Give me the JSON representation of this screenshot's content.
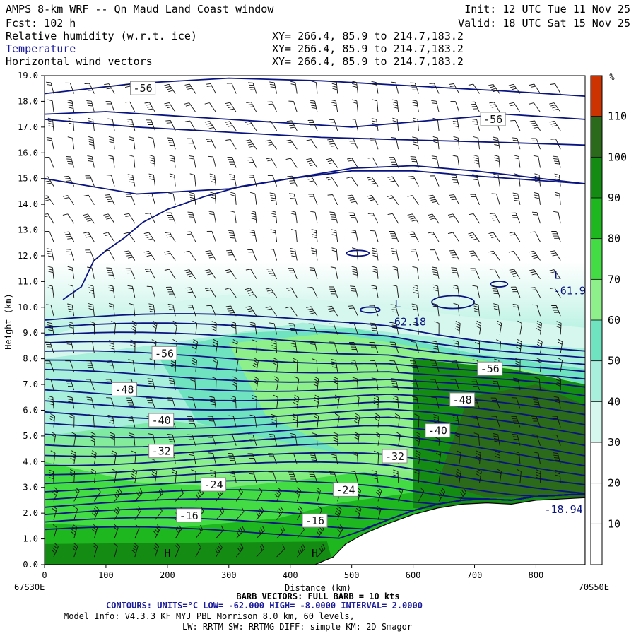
{
  "header": {
    "title": "AMPS 8-km WRF -- Qn Maud Land Coast window",
    "forecast": "Fcst:  102 h",
    "init": "Init: 12 UTC Tue 11 Nov 25",
    "valid": "Valid: 18 UTC Sat 15 Nov 25",
    "fields": [
      {
        "name": "Relative humidity (w.r.t. ice)",
        "xy": "XY= 266.4, 85.9 to 214.7,183.2"
      },
      {
        "name": "Temperature",
        "xy": "XY= 266.4, 85.9 to 214.7,183.2"
      },
      {
        "name": "Horizontal wind vectors",
        "xy": "XY= 266.4, 85.9 to 214.7,183.2"
      }
    ]
  },
  "chart_data": {
    "type": "heatmap",
    "xlabel": "Distance (km)",
    "ylabel": "Height (km)",
    "xlim": [
      0,
      880
    ],
    "ylim": [
      0,
      19
    ],
    "x_ticks": [
      0,
      100,
      200,
      300,
      400,
      500,
      600,
      700,
      800
    ],
    "y_ticks": [
      "0.0",
      "1.0",
      "2.0",
      "3.0",
      "4.0",
      "5.0",
      "6.0",
      "7.0",
      "8.0",
      "9.0",
      "10.0",
      "11.0",
      "12.0",
      "13.0",
      "14.0",
      "15.0",
      "16.0",
      "17.0",
      "18.0",
      "19.0"
    ],
    "x_start_label": "67S30E",
    "x_end_label": "70S50E",
    "colorbar": {
      "unit": "%",
      "tick_labels": [
        "10",
        "20",
        "30",
        "40",
        "50",
        "60",
        "70",
        "80",
        "90",
        "100",
        "110"
      ],
      "bins": [
        {
          "from": 0,
          "to": 30,
          "color": "#ffffff"
        },
        {
          "from": 30,
          "to": 40,
          "color": "#d6f7ee"
        },
        {
          "from": 40,
          "to": 50,
          "color": "#a8f0dc"
        },
        {
          "from": 50,
          "to": 60,
          "color": "#6fe3bf"
        },
        {
          "from": 60,
          "to": 70,
          "color": "#8ef08a"
        },
        {
          "from": 70,
          "to": 80,
          "color": "#44dc44"
        },
        {
          "from": 80,
          "to": 90,
          "color": "#1fb71f"
        },
        {
          "from": 90,
          "to": 100,
          "color": "#148c14"
        },
        {
          "from": 100,
          "to": 110,
          "color": "#2a6a1a"
        },
        {
          "from": 110,
          "to": 120,
          "color": "#cc3300"
        }
      ]
    },
    "terrain": [
      [
        0,
        0
      ],
      [
        440,
        0
      ],
      [
        470,
        0.3
      ],
      [
        490,
        0.8
      ],
      [
        520,
        1.2
      ],
      [
        560,
        1.6
      ],
      [
        600,
        1.95
      ],
      [
        640,
        2.2
      ],
      [
        680,
        2.35
      ],
      [
        720,
        2.4
      ],
      [
        760,
        2.35
      ],
      [
        800,
        2.5
      ],
      [
        880,
        2.6
      ]
    ],
    "temperature_contours": {
      "units": "°C",
      "labels": [
        {
          "text": "-56",
          "x": 160,
          "y": 18.5
        },
        {
          "text": "-56",
          "x": 730,
          "y": 17.3
        },
        {
          "text": "-56",
          "x": 195,
          "y": 8.2
        },
        {
          "text": "-56",
          "x": 725,
          "y": 7.6
        },
        {
          "text": "-48",
          "x": 130,
          "y": 6.8
        },
        {
          "text": "-48",
          "x": 680,
          "y": 6.4
        },
        {
          "text": "-40",
          "x": 190,
          "y": 5.6
        },
        {
          "text": "-40",
          "x": 640,
          "y": 5.2
        },
        {
          "text": "-32",
          "x": 190,
          "y": 4.4
        },
        {
          "text": "-32",
          "x": 570,
          "y": 4.2
        },
        {
          "text": "-24",
          "x": 275,
          "y": 3.1
        },
        {
          "text": "-24",
          "x": 490,
          "y": 2.9
        },
        {
          "text": "-16",
          "x": 235,
          "y": 1.9
        },
        {
          "text": "-16",
          "x": 440,
          "y": 1.7
        }
      ],
      "annotations": [
        {
          "text": "L",
          "x": 575,
          "y": 10.0
        },
        {
          "text": "-62.18",
          "x": 590,
          "y": 9.3
        },
        {
          "text": "L",
          "x": 835,
          "y": 11.1
        },
        {
          "text": "-61.9",
          "x": 855,
          "y": 10.5
        },
        {
          "text": "H",
          "x": 200,
          "y": 0.3
        },
        {
          "text": "H",
          "x": 440,
          "y": 0.3
        },
        {
          "text": "-18.94",
          "x": 845,
          "y": 2.0
        }
      ]
    }
  },
  "footer": {
    "barb_vectors": "BARB VECTORS:  FULL BARB = 10 kts",
    "contours": "CONTOURS:  UNITS=°C  LOW= -62.000      HIGH= -8.0000       INTERVAL=   2.0000",
    "model_info": "Model Info: V4.3.3   KF      MYJ PBL  Morrison          8.0 km,  60 levels,",
    "physics": "LW: RRTM SW: RRTMG   DIFF: simple KM: 2D Smagor"
  },
  "colors": {
    "contour": "#0a1480",
    "terrain": "#ffffff",
    "axis": "#000000"
  }
}
